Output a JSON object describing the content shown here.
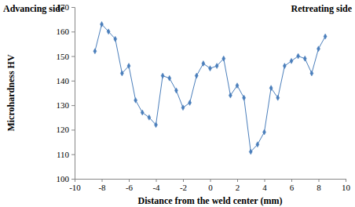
{
  "chart_data": {
    "type": "line",
    "annotations": [
      "Advancing side",
      "Retreating side"
    ],
    "x_label": "Distance from the weld center (mm)",
    "y_label": "Microhardness HV",
    "x": [
      -8.5,
      -8,
      -7.5,
      -7,
      -6.5,
      -6,
      -5.5,
      -5,
      -4.5,
      -4,
      -3.5,
      -3,
      -2.5,
      -2,
      -1.5,
      -1,
      -0.5,
      0,
      0.5,
      1,
      1.5,
      2,
      2.5,
      3,
      3.5,
      4,
      4.5,
      5,
      5.5,
      6,
      6.5,
      7,
      7.5,
      8,
      8.5
    ],
    "values": [
      152,
      163,
      160,
      157,
      143,
      146,
      132,
      127,
      125,
      122,
      142,
      141,
      136,
      129,
      131,
      142,
      147,
      145,
      146,
      149,
      134,
      138,
      133,
      111,
      114,
      119,
      137,
      133,
      146,
      148,
      150,
      149,
      143,
      153,
      158
    ],
    "color": "#4a7ebb",
    "marker": "diamond",
    "line_style": "solid",
    "xlim": [
      -10,
      10
    ],
    "xticks": [
      -10,
      -8,
      -6,
      -4,
      -2,
      0,
      2,
      4,
      6,
      8,
      10
    ],
    "ylim": [
      100,
      170
    ],
    "yticks": [
      100,
      110,
      120,
      130,
      140,
      150,
      160,
      170
    ],
    "grid": false
  }
}
